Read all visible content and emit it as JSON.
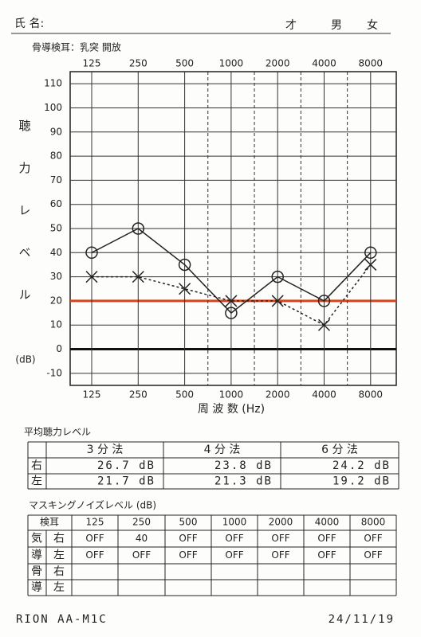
{
  "header": {
    "name_label": "氏 名:",
    "age_label": "才",
    "male_label": "男",
    "female_label": "女",
    "bone_note": "骨導検耳：乳突  開放"
  },
  "chart_data": {
    "type": "line",
    "categories": [
      "125",
      "250",
      "500",
      "1000",
      "2000",
      "4000",
      "8000"
    ],
    "x_label": "周 波 数 (Hz)",
    "y_label": "聴力レベル",
    "y_unit": "(dB)",
    "ylim": [
      -15,
      115
    ],
    "yticks": [
      -10,
      0,
      10,
      20,
      30,
      40,
      50,
      60,
      70,
      80,
      90,
      100,
      110
    ],
    "grid": true,
    "reference_lines": [
      {
        "value": 0,
        "color": "#111111"
      },
      {
        "value": 20,
        "color": "#d2451e"
      }
    ],
    "series": [
      {
        "color": "#222222",
        "marker": "circle",
        "line_style": "solid",
        "values": [
          40,
          50,
          35,
          15,
          30,
          20,
          40
        ]
      },
      {
        "color": "#222222",
        "marker": "x",
        "line_style": "dashed",
        "values": [
          30,
          30,
          25,
          20,
          20,
          10,
          35
        ]
      }
    ]
  },
  "average_hearing_level": {
    "title": "平均聴力レベル",
    "columns": [
      "3 分 法",
      "4 分 法",
      "6 分 法"
    ],
    "rows": [
      {
        "label": "右",
        "values": [
          "26.7 dB",
          "23.8 dB",
          "24.2 dB"
        ]
      },
      {
        "label": "左",
        "values": [
          "21.7 dB",
          "21.3 dB",
          "19.2 dB"
        ]
      }
    ]
  },
  "masking": {
    "title": "マスキングノイズレベル (dB)",
    "header": [
      "検耳",
      "125",
      "250",
      "500",
      "1000",
      "2000",
      "4000",
      "8000"
    ],
    "type_labels": [
      "気",
      "導",
      "骨",
      "導"
    ],
    "side_labels": [
      "右",
      "左",
      "右",
      "左"
    ],
    "rows": [
      [
        "OFF",
        "40",
        "OFF",
        "OFF",
        "OFF",
        "OFF",
        "OFF"
      ],
      [
        "OFF",
        "OFF",
        "OFF",
        "OFF",
        "OFF",
        "OFF",
        "OFF"
      ]
    ]
  },
  "footer": {
    "model": "RION AA-M1C",
    "date": "24/11/19"
  }
}
